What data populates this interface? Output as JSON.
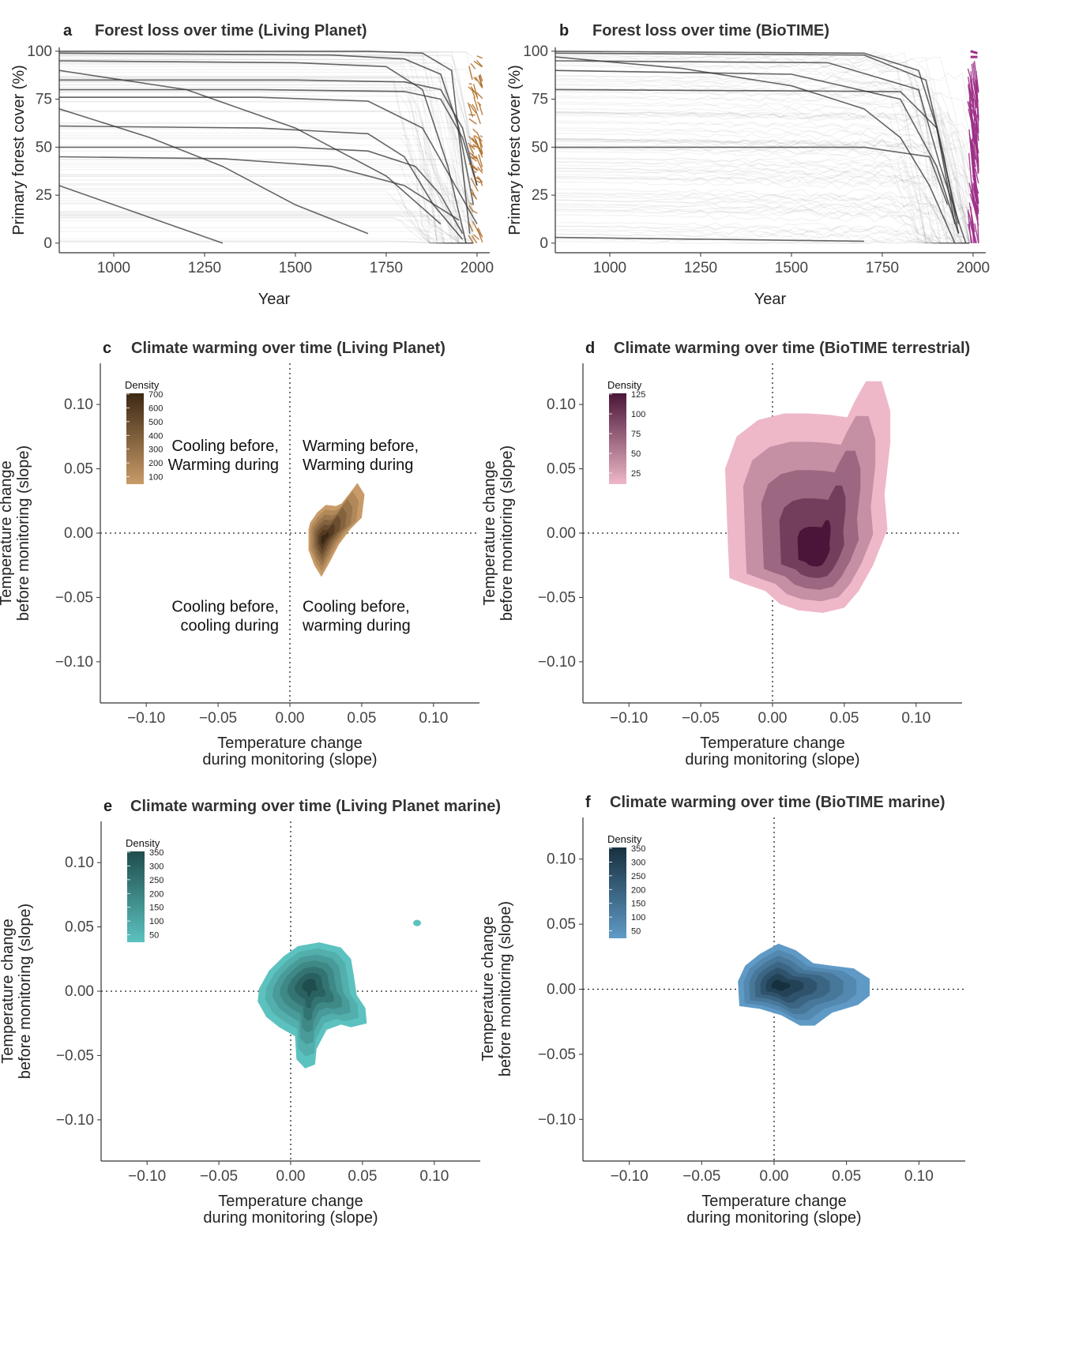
{
  "colors": {
    "forest_lines": "#333333",
    "living_planet_accent": "#b06f2a",
    "biotime_accent": "#9c2e86",
    "panel_c_dark": "#3d2814",
    "panel_c_light": "#c89b68",
    "panel_d_dark": "#4a1538",
    "panel_d_light": "#eeb8c8",
    "panel_e_dark": "#1f4d4d",
    "panel_e_light": "#5cc2bf",
    "panel_f_dark": "#17303f",
    "panel_f_light": "#5f9ac6"
  },
  "chart_data": [
    {
      "id": "a",
      "type": "line",
      "letter": "a",
      "title": "Forest loss over time (Living Planet)",
      "xlabel": "Year",
      "ylabel": "Primary forest cover (%)",
      "xlim": [
        850,
        2035
      ],
      "ylim": [
        -5,
        102
      ],
      "xticks": [
        "1000",
        "1250",
        "1500",
        "1750",
        "2000"
      ],
      "yticks": [
        "0",
        "25",
        "50",
        "75",
        "100"
      ],
      "series": [
        {
          "x": [
            850,
            1700,
            1850,
            1930,
            1960,
            1980
          ],
          "y": [
            100,
            100,
            99,
            90,
            40,
            5
          ]
        },
        {
          "x": [
            850,
            1600,
            1800,
            1900,
            1950,
            1990
          ],
          "y": [
            99,
            98,
            96,
            88,
            60,
            20
          ]
        },
        {
          "x": [
            850,
            1500,
            1750,
            1850,
            1920,
            1970
          ],
          "y": [
            95,
            94,
            92,
            80,
            40,
            0
          ]
        },
        {
          "x": [
            850,
            1500,
            1800,
            1900,
            1960,
            2000
          ],
          "y": [
            85,
            85,
            84,
            80,
            60,
            30
          ]
        },
        {
          "x": [
            850,
            1400,
            1800,
            1900,
            1960,
            2000
          ],
          "y": [
            80,
            80,
            79,
            75,
            55,
            30
          ]
        },
        {
          "x": [
            850,
            1400,
            1700,
            1850,
            1940,
            2000
          ],
          "y": [
            76,
            76,
            74,
            60,
            30,
            10
          ]
        },
        {
          "x": [
            850,
            1400,
            1700,
            1800,
            1880,
            1960
          ],
          "y": [
            61,
            60,
            57,
            45,
            20,
            2
          ]
        },
        {
          "x": [
            850,
            1500,
            1700,
            1830,
            1900,
            1960
          ],
          "y": [
            50,
            50,
            48,
            40,
            25,
            5
          ]
        },
        {
          "x": [
            850,
            1200,
            1500,
            1750,
            1900
          ],
          "y": [
            90,
            80,
            60,
            35,
            10
          ]
        },
        {
          "x": [
            850,
            1100,
            1300,
            1500,
            1700
          ],
          "y": [
            70,
            55,
            40,
            20,
            5
          ]
        },
        {
          "x": [
            850,
            1000,
            1150,
            1300
          ],
          "y": [
            30,
            20,
            10,
            0
          ]
        },
        {
          "x": [
            850,
            1300,
            1600,
            1800,
            1950
          ],
          "y": [
            45,
            44,
            40,
            30,
            12
          ]
        }
      ],
      "recent_segment_years": [
        1975,
        2015
      ]
    },
    {
      "id": "b",
      "type": "line",
      "letter": "b",
      "title": "Forest loss over time (BioTIME)",
      "xlabel": "Year",
      "ylabel": "Primary forest cover (%)",
      "xlim": [
        850,
        2035
      ],
      "ylim": [
        -5,
        102
      ],
      "xticks": [
        "1000",
        "1250",
        "1500",
        "1750",
        "2000"
      ],
      "yticks": [
        "0",
        "25",
        "50",
        "75",
        "100"
      ],
      "series": [
        {
          "x": [
            850,
            1200,
            1500,
            1700,
            1800,
            1880,
            1950
          ],
          "y": [
            97,
            91,
            82,
            70,
            55,
            30,
            0
          ]
        },
        {
          "x": [
            850,
            1700,
            1850,
            1900,
            1950
          ],
          "y": [
            100,
            99,
            90,
            60,
            10
          ]
        },
        {
          "x": [
            850,
            1700,
            1870,
            1920,
            1960
          ],
          "y": [
            99,
            98,
            85,
            45,
            5
          ]
        },
        {
          "x": [
            850,
            1600,
            1850,
            1910,
            1980
          ],
          "y": [
            95,
            94,
            80,
            40,
            0
          ]
        },
        {
          "x": [
            850,
            1500,
            1800,
            1900,
            1960
          ],
          "y": [
            90,
            88,
            75,
            40,
            5
          ]
        },
        {
          "x": [
            850,
            1700,
            1880,
            1930
          ],
          "y": [
            50,
            50,
            45,
            20
          ]
        },
        {
          "x": [
            850,
            1800,
            1900,
            1960
          ],
          "y": [
            80,
            79,
            60,
            10
          ]
        },
        {
          "x": [
            850,
            1700
          ],
          "y": [
            3,
            1
          ]
        }
      ],
      "recent_segment_years": [
        1985,
        2015
      ]
    },
    {
      "id": "c",
      "type": "contour",
      "letter": "c",
      "title": "Climate warming over time (Living Planet)",
      "xlabel": "Temperature change\nduring monitoring (slope)",
      "ylabel": "Temperature change\nbefore monitoring (slope)",
      "xlim": [
        -0.132,
        0.132
      ],
      "ylim": [
        -0.132,
        0.132
      ],
      "xticks": [
        "−0.10",
        "−0.05",
        "0.00",
        "0.05",
        "0.10"
      ],
      "yticks": [
        "−0.10",
        "−0.05",
        "0.00",
        "0.05",
        "0.10"
      ],
      "legend": {
        "title": "Density",
        "labels": [
          "700",
          "600",
          "500",
          "400",
          "300",
          "200",
          "100"
        ],
        "position": "top-left"
      },
      "quadrant_labels": {
        "top_left": [
          "Cooling before,",
          "Warming during"
        ],
        "top_right": [
          "Warming before,",
          "Warming during"
        ],
        "bottom_left": [
          "Cooling before,",
          "cooling during"
        ],
        "bottom_right": [
          "Cooling before,",
          "warming during"
        ]
      },
      "peak": [
        0.023,
        -0.005
      ],
      "outline": [
        [
          0.013,
          0.003
        ],
        [
          0.013,
          -0.013
        ],
        [
          0.017,
          -0.025
        ],
        [
          0.022,
          -0.034
        ],
        [
          0.028,
          -0.022
        ],
        [
          0.034,
          -0.009
        ],
        [
          0.042,
          0.003
        ],
        [
          0.05,
          0.012
        ],
        [
          0.052,
          0.03
        ],
        [
          0.047,
          0.039
        ],
        [
          0.041,
          0.03
        ],
        [
          0.036,
          0.023
        ],
        [
          0.032,
          0.021
        ],
        [
          0.025,
          0.022
        ],
        [
          0.019,
          0.016
        ],
        [
          0.014,
          0.008
        ]
      ]
    },
    {
      "id": "d",
      "type": "contour",
      "letter": "d",
      "title": "Climate warming over time (BioTIME terrestrial)",
      "xlabel": "Temperature change\nduring monitoring (slope)",
      "ylabel": "Temperature change\nbefore monitoring (slope)",
      "xlim": [
        -0.132,
        0.132
      ],
      "ylim": [
        -0.132,
        0.132
      ],
      "xticks": [
        "−0.10",
        "−0.05",
        "0.00",
        "0.05",
        "0.10"
      ],
      "yticks": [
        "−0.10",
        "−0.05",
        "0.00",
        "0.05",
        "0.10"
      ],
      "legend": {
        "title": "Density",
        "labels": [
          "125",
          "100",
          "75",
          "50",
          "25"
        ],
        "position": "top-left"
      },
      "peak": [
        0.03,
        -0.017
      ],
      "outline": [
        [
          -0.033,
          0.05
        ],
        [
          -0.032,
          0.02
        ],
        [
          -0.031,
          -0.01
        ],
        [
          -0.03,
          -0.035
        ],
        [
          -0.018,
          -0.04
        ],
        [
          -0.005,
          -0.045
        ],
        [
          0.005,
          -0.055
        ],
        [
          0.018,
          -0.06
        ],
        [
          0.035,
          -0.062
        ],
        [
          0.05,
          -0.058
        ],
        [
          0.06,
          -0.045
        ],
        [
          0.07,
          -0.025
        ],
        [
          0.08,
          0.003
        ],
        [
          0.078,
          0.03
        ],
        [
          0.082,
          0.07
        ],
        [
          0.082,
          0.095
        ],
        [
          0.076,
          0.118
        ],
        [
          0.065,
          0.118
        ],
        [
          0.057,
          0.102
        ],
        [
          0.052,
          0.09
        ],
        [
          0.04,
          0.092
        ],
        [
          0.025,
          0.093
        ],
        [
          0.008,
          0.093
        ],
        [
          -0.01,
          0.088
        ],
        [
          -0.025,
          0.075
        ]
      ]
    },
    {
      "id": "e",
      "type": "contour",
      "letter": "e",
      "title": "Climate warming over time (Living Planet marine)",
      "xlabel": "Temperature change\nduring monitoring (slope)",
      "ylabel": "Temperature change\nbefore monitoring (slope)",
      "xlim": [
        -0.132,
        0.132
      ],
      "ylim": [
        -0.132,
        0.132
      ],
      "xticks": [
        "−0.10",
        "−0.05",
        "0.00",
        "0.05",
        "0.10"
      ],
      "yticks": [
        "−0.10",
        "−0.05",
        "0.00",
        "0.05",
        "0.10"
      ],
      "legend": {
        "title": "Density",
        "labels": [
          "350",
          "300",
          "250",
          "200",
          "150",
          "100",
          "50"
        ],
        "position": "top-left"
      },
      "peak": [
        0.013,
        0.005
      ],
      "outline": [
        [
          -0.022,
          0.002
        ],
        [
          -0.015,
          0.016
        ],
        [
          -0.005,
          0.027
        ],
        [
          0.005,
          0.035
        ],
        [
          0.02,
          0.038
        ],
        [
          0.035,
          0.034
        ],
        [
          0.042,
          0.025
        ],
        [
          0.044,
          0.012
        ],
        [
          0.046,
          -0.003
        ],
        [
          0.052,
          -0.013
        ],
        [
          0.053,
          -0.025
        ],
        [
          0.042,
          -0.028
        ],
        [
          0.035,
          -0.026
        ],
        [
          0.025,
          -0.03
        ],
        [
          0.018,
          -0.045
        ],
        [
          0.017,
          -0.057
        ],
        [
          0.01,
          -0.06
        ],
        [
          0.004,
          -0.053
        ],
        [
          0.003,
          -0.035
        ],
        [
          -0.008,
          -0.028
        ],
        [
          -0.017,
          -0.02
        ],
        [
          -0.023,
          -0.008
        ]
      ],
      "outlier": [
        0.088,
        0.053
      ]
    },
    {
      "id": "f",
      "type": "contour",
      "letter": "f",
      "title": "Climate warming over time (BioTIME marine)",
      "xlabel": "Temperature change\nduring monitoring (slope)",
      "ylabel": "Temperature change\nbefore monitoring (slope)",
      "xlim": [
        -0.132,
        0.132
      ],
      "ylim": [
        -0.132,
        0.132
      ],
      "xticks": [
        "−0.10",
        "−0.05",
        "0.00",
        "0.05",
        "0.10"
      ],
      "yticks": [
        "−0.10",
        "−0.05",
        "0.00",
        "0.05",
        "0.10"
      ],
      "legend": {
        "title": "Density",
        "labels": [
          "350",
          "300",
          "250",
          "200",
          "150",
          "100",
          "50"
        ],
        "position": "top-left"
      },
      "peak": [
        0.002,
        0.003
      ],
      "outline": [
        [
          -0.025,
          0.006
        ],
        [
          -0.02,
          0.018
        ],
        [
          -0.01,
          0.027
        ],
        [
          0.003,
          0.035
        ],
        [
          0.015,
          0.03
        ],
        [
          0.027,
          0.02
        ],
        [
          0.04,
          0.018
        ],
        [
          0.055,
          0.016
        ],
        [
          0.066,
          0.008
        ],
        [
          0.066,
          -0.005
        ],
        [
          0.058,
          -0.012
        ],
        [
          0.04,
          -0.018
        ],
        [
          0.028,
          -0.028
        ],
        [
          0.018,
          -0.028
        ],
        [
          0.005,
          -0.02
        ],
        [
          -0.01,
          -0.015
        ],
        [
          -0.024,
          -0.013
        ]
      ]
    }
  ]
}
